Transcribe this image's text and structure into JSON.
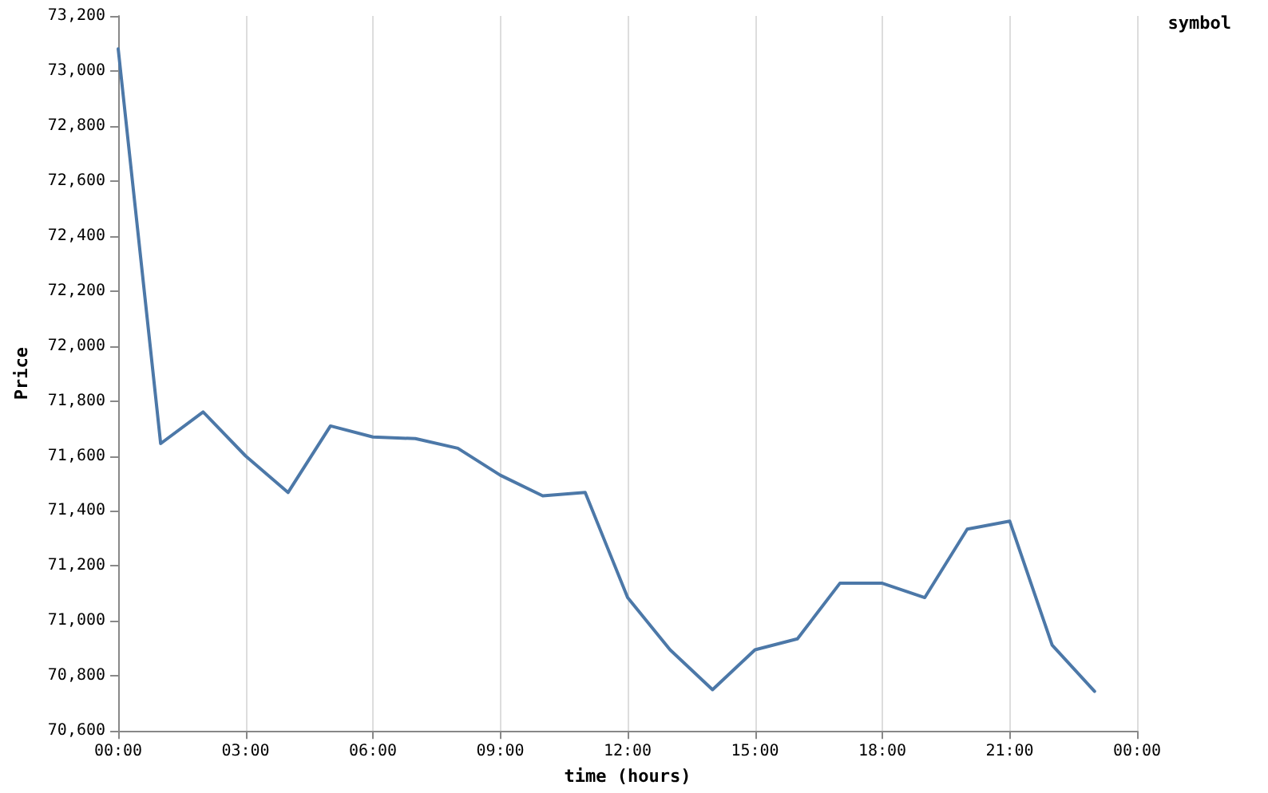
{
  "chart_data": {
    "type": "line",
    "xlabel": "time (hours)",
    "ylabel": "Price",
    "legend_title": "symbol",
    "grid": "x",
    "marker": "none",
    "line_style": "solid",
    "x": [
      0,
      1,
      2,
      3,
      4,
      5,
      6,
      7,
      8,
      9,
      10,
      11,
      12,
      13,
      14,
      15,
      16,
      17,
      18,
      19,
      20,
      21,
      22,
      23
    ],
    "series": [
      {
        "color": "#4c78a8",
        "values": [
          73080,
          71645,
          71760,
          71600,
          71467,
          71709,
          71669,
          71663,
          71628,
          71530,
          71455,
          71467,
          71085,
          70895,
          70750,
          70895,
          70935,
          71137,
          71137,
          71085,
          71334,
          71363,
          70912,
          70744
        ]
      }
    ],
    "xlim": [
      0,
      24
    ],
    "xticks": [
      {
        "value": 0,
        "label": "00:00"
      },
      {
        "value": 3,
        "label": "03:00"
      },
      {
        "value": 6,
        "label": "06:00"
      },
      {
        "value": 9,
        "label": "09:00"
      },
      {
        "value": 12,
        "label": "12:00"
      },
      {
        "value": 15,
        "label": "15:00"
      },
      {
        "value": 18,
        "label": "18:00"
      },
      {
        "value": 21,
        "label": "21:00"
      },
      {
        "value": 24,
        "label": "00:00"
      }
    ],
    "ylim": [
      70600,
      73200
    ],
    "yticks": [
      {
        "value": 70600,
        "label": "70,600"
      },
      {
        "value": 70800,
        "label": "70,800"
      },
      {
        "value": 71000,
        "label": "71,000"
      },
      {
        "value": 71200,
        "label": "71,200"
      },
      {
        "value": 71400,
        "label": "71,400"
      },
      {
        "value": 71600,
        "label": "71,600"
      },
      {
        "value": 71800,
        "label": "71,800"
      },
      {
        "value": 72000,
        "label": "72,000"
      },
      {
        "value": 72200,
        "label": "72,200"
      },
      {
        "value": 72400,
        "label": "72,400"
      },
      {
        "value": 72600,
        "label": "72,600"
      },
      {
        "value": 72800,
        "label": "72,800"
      },
      {
        "value": 73000,
        "label": "73,000"
      },
      {
        "value": 73200,
        "label": "73,200"
      }
    ]
  }
}
